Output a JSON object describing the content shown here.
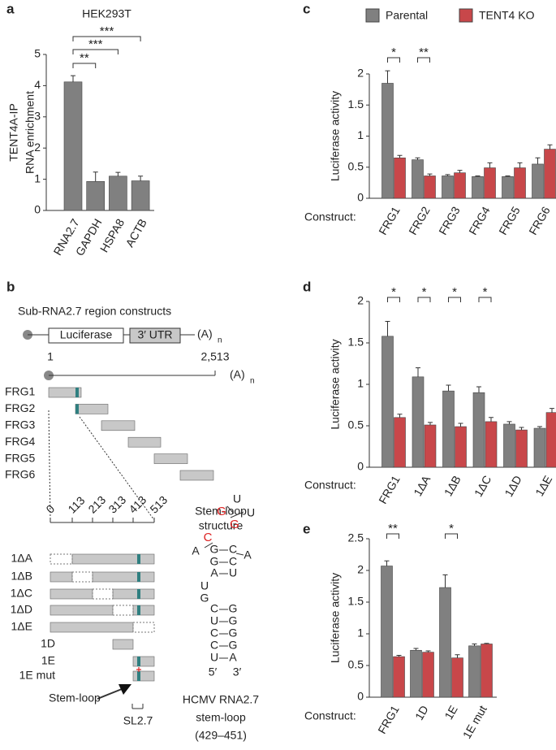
{
  "chart_data": [
    {
      "type": "bar",
      "panel": "a",
      "title": "HEK293T",
      "ylabel": [
        "TENT4A-IP",
        "RNA enrichment"
      ],
      "categories": [
        "RNA2.7",
        "GAPDH",
        "HSPA8",
        "ACTB"
      ],
      "series": [
        {
          "color": "#808080",
          "values": [
            4.12,
            0.93,
            1.1,
            0.95
          ],
          "errors": [
            0.2,
            0.3,
            0.12,
            0.15
          ]
        }
      ],
      "ylim": [
        0,
        5
      ],
      "yticks": [
        0,
        1,
        2,
        3,
        4,
        5
      ],
      "annotations": [
        {
          "text": "**",
          "between": [
            0,
            1
          ]
        },
        {
          "text": "***",
          "between": [
            0,
            2
          ]
        },
        {
          "text": "***",
          "between": [
            0,
            3
          ]
        }
      ]
    },
    {
      "type": "bar",
      "panel": "c",
      "ylabel": [
        "Luciferase activity"
      ],
      "xlabel": "Construct:",
      "categories": [
        "FRG1",
        "FRG2",
        "FRG3",
        "FRG4",
        "FRG5",
        "FRG6"
      ],
      "series": [
        {
          "name": "Parental",
          "color": "#808080",
          "values": [
            1.85,
            0.62,
            0.36,
            0.35,
            0.35,
            0.55
          ],
          "errors": [
            0.2,
            0.03,
            0.02,
            0.01,
            0.01,
            0.1
          ]
        },
        {
          "name": "TENT4 KO",
          "color": "#c8474a",
          "values": [
            0.65,
            0.36,
            0.41,
            0.49,
            0.49,
            0.79
          ],
          "errors": [
            0.04,
            0.03,
            0.04,
            0.08,
            0.08,
            0.07
          ]
        }
      ],
      "ylim": [
        0,
        2
      ],
      "yticks": [
        0,
        0.5,
        1,
        1.5,
        2
      ],
      "legend": "top",
      "annotations": [
        {
          "text": "*",
          "group": 0
        },
        {
          "text": "**",
          "group": 1
        }
      ]
    },
    {
      "type": "bar",
      "panel": "d",
      "ylabel": [
        "Luciferase activity"
      ],
      "xlabel": "Construct:",
      "categories": [
        "FRG1",
        "1ΔA",
        "1ΔB",
        "1ΔC",
        "1ΔD",
        "1ΔE"
      ],
      "series": [
        {
          "name": "Parental",
          "color": "#808080",
          "values": [
            1.58,
            1.09,
            0.92,
            0.9,
            0.52,
            0.47
          ],
          "errors": [
            0.18,
            0.11,
            0.07,
            0.07,
            0.03,
            0.02
          ]
        },
        {
          "name": "TENT4 KO",
          "color": "#c8474a",
          "values": [
            0.6,
            0.51,
            0.49,
            0.55,
            0.45,
            0.66
          ],
          "errors": [
            0.04,
            0.03,
            0.04,
            0.05,
            0.03,
            0.05
          ]
        }
      ],
      "ylim": [
        0,
        2
      ],
      "yticks": [
        0,
        0.5,
        1,
        1.5,
        2
      ],
      "annotations": [
        {
          "text": "*",
          "group": 0
        },
        {
          "text": "*",
          "group": 1
        },
        {
          "text": "*",
          "group": 2
        },
        {
          "text": "*",
          "group": 3
        }
      ]
    },
    {
      "type": "bar",
      "panel": "e",
      "ylabel": [
        "Luciferase activity"
      ],
      "xlabel": "Construct:",
      "categories": [
        "FRG1",
        "1D",
        "1E",
        "1E mut"
      ],
      "series": [
        {
          "name": "Parental",
          "color": "#808080",
          "values": [
            2.07,
            0.74,
            1.73,
            0.81
          ],
          "errors": [
            0.08,
            0.03,
            0.2,
            0.03
          ]
        },
        {
          "name": "TENT4 KO",
          "color": "#c8474a",
          "values": [
            0.64,
            0.71,
            0.62,
            0.84
          ],
          "errors": [
            0.02,
            0.02,
            0.05,
            0.01
          ]
        }
      ],
      "ylim": [
        0,
        2.5
      ],
      "yticks": [
        0,
        0.5,
        1,
        1.5,
        2,
        2.5
      ],
      "annotations": [
        {
          "text": "**",
          "group": 0
        },
        {
          "text": "*",
          "group": 2
        }
      ]
    }
  ],
  "diagram": {
    "panel": "b",
    "title": "Sub-RNA2.7 region constructs",
    "luciferase": "Luciferase",
    "utr": "3′ UTR",
    "polya": "(A)",
    "polya_sub": "n",
    "start": "1",
    "end": "2,513",
    "fragments": [
      "FRG1",
      "FRG2",
      "FRG3",
      "FRG4",
      "FRG5",
      "FRG6"
    ],
    "scale_ticks": [
      "0",
      "113",
      "213",
      "313",
      "413",
      "513"
    ],
    "deletions": [
      "1ΔA",
      "1ΔB",
      "1ΔC",
      "1ΔD",
      "1ΔE",
      "1D",
      "1E",
      "1E mut"
    ],
    "structure_title": [
      "Stem-loop",
      "structure"
    ],
    "stem_loop_label": "Stem-loop",
    "sl_label": "SL2.7",
    "caption": [
      "HCMV RNA2.7",
      "stem-loop",
      "(429–451)"
    ],
    "stem_loop": {
      "loop": [
        "U",
        "G",
        "U",
        "G",
        "C",
        "A",
        "A"
      ],
      "pairs": [
        [
          "G",
          "C"
        ],
        [
          "G",
          "C"
        ],
        [
          "A",
          "U"
        ],
        [
          "C",
          "G"
        ],
        [
          "U",
          "G"
        ],
        [
          "C",
          "G"
        ],
        [
          "C",
          "G"
        ],
        [
          "U",
          "A"
        ]
      ],
      "bulge": [
        "U",
        "G"
      ],
      "ends": [
        "5′",
        "3′"
      ]
    }
  }
}
